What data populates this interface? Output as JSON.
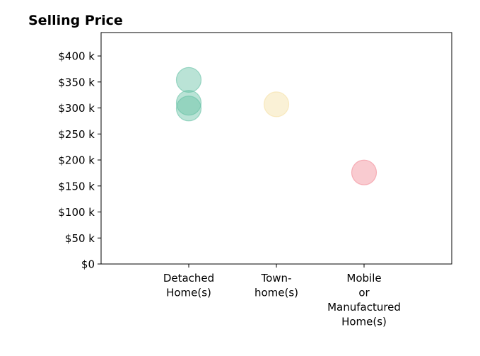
{
  "chart_data": {
    "type": "scatter",
    "title": "Selling Price",
    "xlabel": "",
    "ylabel": "",
    "categories": [
      [
        "Detached",
        "Home(s)"
      ],
      [
        "Town-",
        "home(s)"
      ],
      [
        "Mobile",
        "or",
        "Manufactured",
        "Home(s)"
      ]
    ],
    "y_ticks": [
      0,
      50,
      100,
      150,
      200,
      250,
      300,
      350,
      400
    ],
    "y_tick_labels": [
      "$0",
      "$50 k",
      "$100 k",
      "$150 k",
      "$200 k",
      "$250 k",
      "$300 k",
      "$350 k",
      "$400 k"
    ],
    "ylim": [
      0,
      445
    ],
    "xlim": [
      -1,
      3
    ],
    "grid": false,
    "legend": "none",
    "points": [
      {
        "category": 0,
        "value": 354,
        "color": "#66c2a5"
      },
      {
        "category": 0,
        "value": 310,
        "color": "#66c2a5"
      },
      {
        "category": 0,
        "value": 299,
        "color": "#66c2a5"
      },
      {
        "category": 1,
        "value": 307,
        "color": "#f5dfa4"
      },
      {
        "category": 2,
        "value": 176,
        "color": "#f28b96"
      }
    ]
  }
}
